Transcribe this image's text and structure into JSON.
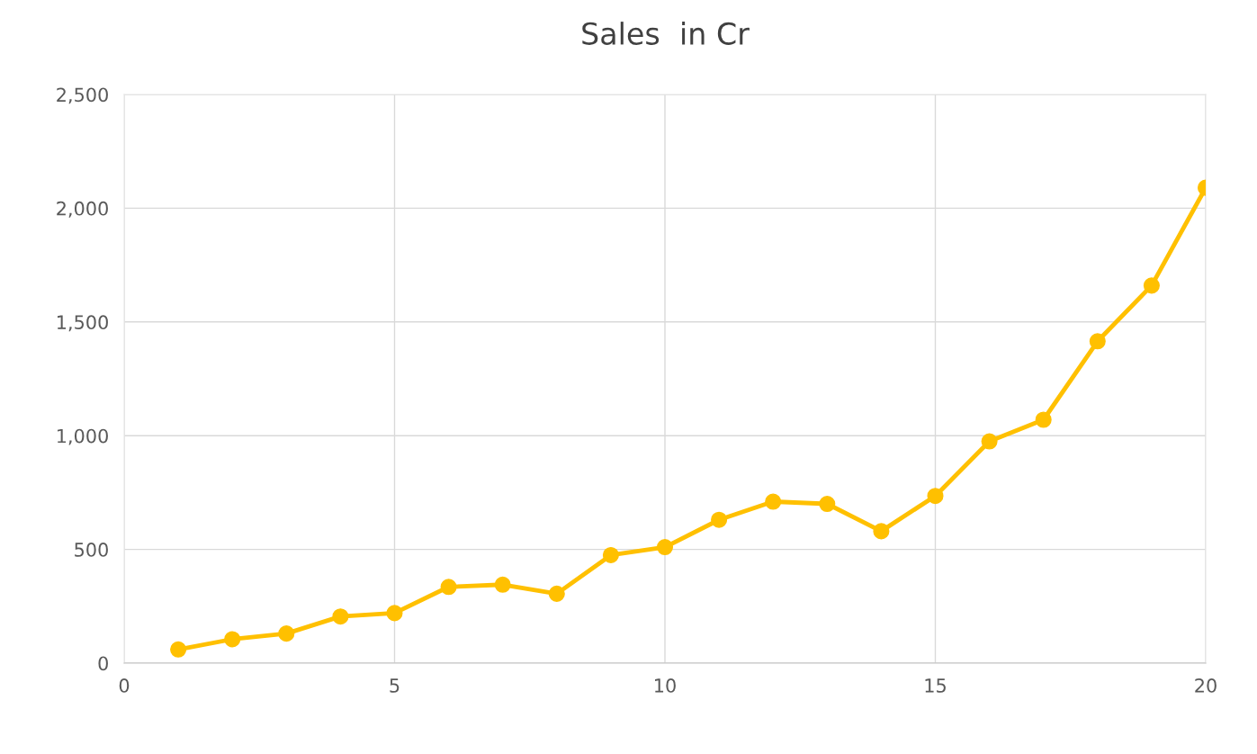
{
  "chart_data": {
    "type": "line",
    "title": "Sales  in Cr",
    "x": [
      1,
      2,
      3,
      4,
      5,
      6,
      7,
      8,
      9,
      10,
      11,
      12,
      13,
      14,
      15,
      16,
      17,
      18,
      19,
      20
    ],
    "series": [
      {
        "color": "#ffc000",
        "values": [
          60,
          105,
          130,
          205,
          220,
          335,
          345,
          305,
          475,
          510,
          630,
          710,
          700,
          580,
          735,
          975,
          1070,
          1415,
          1660,
          2090
        ]
      }
    ],
    "xlim": [
      0,
      20
    ],
    "xticks": [
      0,
      5,
      10,
      15,
      20
    ],
    "ylim": [
      0,
      2500
    ],
    "yticks": [
      {
        "value": 0,
        "label": "0"
      },
      {
        "value": 500,
        "label": "500"
      },
      {
        "value": 1000,
        "label": "1,000"
      },
      {
        "value": 1500,
        "label": "1,500"
      },
      {
        "value": 2000,
        "label": "2,000"
      },
      {
        "value": 2500,
        "label": "2,500"
      }
    ],
    "grid": true,
    "marker": "circle",
    "line_style": "solid"
  }
}
